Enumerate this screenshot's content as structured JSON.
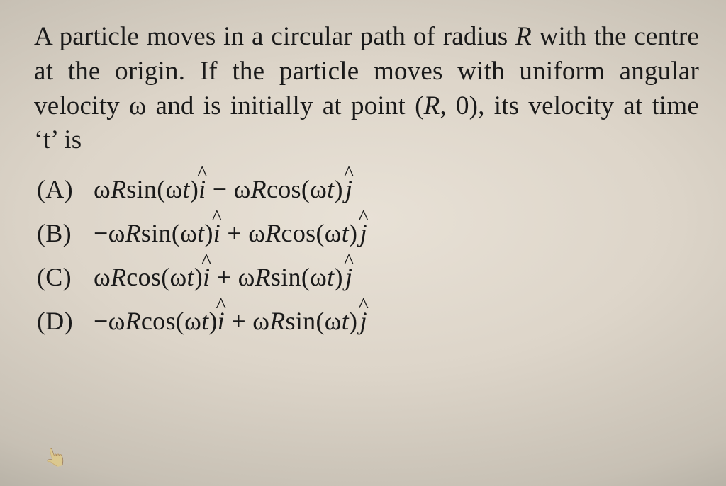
{
  "page": {
    "background_gradient": [
      "#e8e1d6",
      "#ddd5c9",
      "#c7c0b4",
      "#a7a398",
      "#8d8a80"
    ],
    "text_color": "#1a1a1a",
    "font_family": "Times New Roman"
  },
  "question": {
    "text_plain": "A particle moves in a circular path of radius R with the centre at the origin. If the particle moves with uniform angular velocity ω and is initially at point (R, 0), its velocity at time ‘t’ is",
    "fontsize": 37,
    "tokens": {
      "pre": "A particle moves in a circular path of radius ",
      "R1": "R",
      "mid1": " with the centre at the origin. If the particle moves with uniform angular velocity ω and is initially at point (",
      "R2": "R",
      "mid2": ", 0), its velocity at time ‘t’ is"
    }
  },
  "options": {
    "fontsize": 36,
    "items": [
      {
        "label": "(A)",
        "expr_plain": "ωR sin(ωt) î − ωR cos(ωt) ĵ",
        "t": {
          "a": "ω",
          "b": "R",
          "c": "sin",
          "d": "(ω",
          "e": "t",
          "f": ")",
          "g": "i",
          "h": " − ω",
          "i": "R",
          "j": "cos",
          "k": "(ω",
          "l": "t",
          "m": ")",
          "n": "j"
        }
      },
      {
        "label": "(B)",
        "expr_plain": "−ωR sin(ωt) î + ωR cos(ωt) ĵ",
        "t": {
          "a": "−ω",
          "b": "R",
          "c": "sin",
          "d": "(ω",
          "e": "t",
          "f": ")",
          "g": "i",
          "h": " + ω",
          "i": "R",
          "j": "cos",
          "k": "(ω",
          "l": "t",
          "m": ")",
          "n": "j"
        }
      },
      {
        "label": "(C)",
        "expr_plain": "ωR cos(ωt) î + ωR sin(ωt) ĵ",
        "t": {
          "a": "ω",
          "b": "R",
          "c": "cos",
          "d": "(ω",
          "e": "t",
          "f": ")",
          "g": "i",
          "h": " + ω",
          "i": "R",
          "j": "sin",
          "k": "(ω",
          "l": "t",
          "m": ")",
          "n": "j"
        }
      },
      {
        "label": "(D)",
        "expr_plain": "−ωR cos(ωt) î + ωR sin(ωt) ĵ",
        "t": {
          "a": "−ω",
          "b": "R",
          "c": "cos",
          "d": "(ω",
          "e": "t",
          "f": ")",
          "g": "i",
          "h": " + ω",
          "i": "R",
          "j": "sin",
          "k": "(ω",
          "l": "t",
          "m": ")",
          "n": "j"
        }
      }
    ]
  },
  "cursor": {
    "glyph": "👆"
  }
}
